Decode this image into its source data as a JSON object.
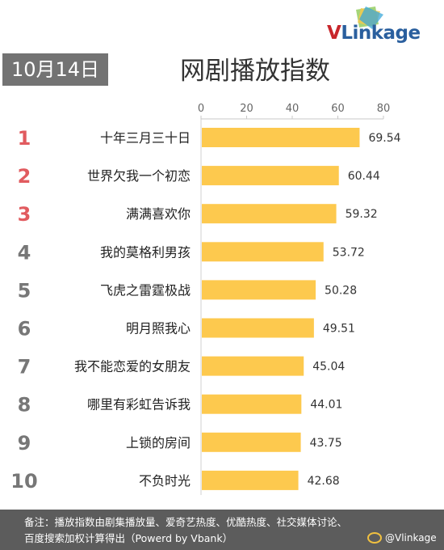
{
  "logo": {
    "text_v": "V",
    "text_rest": "Linkage"
  },
  "date": "10月14日",
  "title": "网剧播放指数",
  "colors": {
    "bar": "#fdc94e",
    "rank_top": "#e15b5f",
    "rank_other": "#777777",
    "footer": "#5c5c5c"
  },
  "chart_data": {
    "type": "bar",
    "orientation": "horizontal",
    "title": "网剧播放指数",
    "categories": [
      "十年三月三十日",
      "世界欠我一个初恋",
      "满满喜欢你",
      "我的莫格利男孩",
      "飞虎之雷霆极战",
      "明月照我心",
      "我不能恋爱的女朋友",
      "哪里有彩虹告诉我",
      "上锁的房间",
      "不负时光"
    ],
    "ranks": [
      "1",
      "2",
      "3",
      "4",
      "5",
      "6",
      "7",
      "8",
      "9",
      "10"
    ],
    "values": [
      69.54,
      60.44,
      59.32,
      53.72,
      50.28,
      49.51,
      45.04,
      44.01,
      43.75,
      42.68
    ],
    "value_labels": [
      "69.54",
      "60.44",
      "59.32",
      "53.72",
      "50.28",
      "49.51",
      "45.04",
      "44.01",
      "43.75",
      "42.68"
    ],
    "xlim": [
      0,
      80
    ],
    "x_ticks": [
      "0",
      "20",
      "40",
      "60",
      "80"
    ],
    "x_tick_values": [
      0,
      20,
      40,
      60,
      80
    ],
    "axis_position": "top",
    "grid": false,
    "legend": "none"
  },
  "footer": {
    "note_line1": "备注：播放指数由剧集播放量、爱奇艺热度、优酷热度、社交媒体讨论、",
    "note_line2": "百度搜索加权计算得出（Powerd by Vbank）",
    "weibo": "@Vlinkage"
  }
}
